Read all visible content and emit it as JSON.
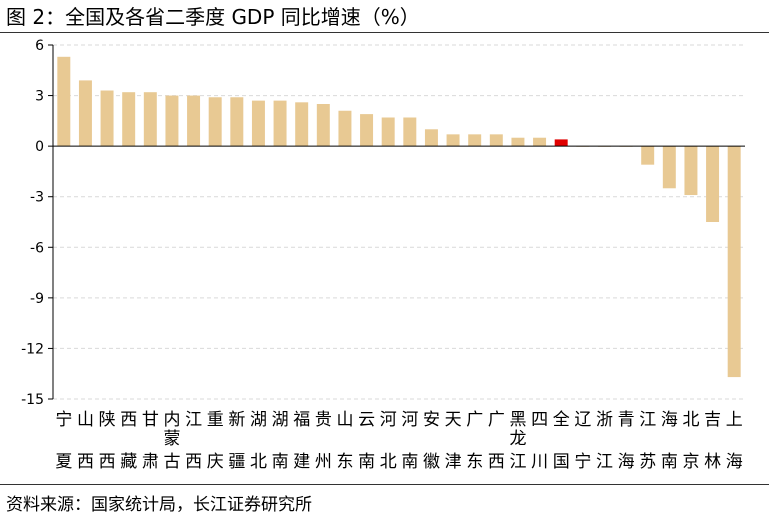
{
  "title": "图 2：全国及各省二季度 GDP 同比增速（%）",
  "source": "资料来源：国家统计局，长江证券研究所",
  "colors": {
    "bar": "#e8c993",
    "highlight": "#e00000",
    "grid": "#d9d9d9",
    "axis": "#000000"
  },
  "chart_data": {
    "type": "bar",
    "title": "全国及各省二季度 GDP 同比增速（%）",
    "xlabel": "",
    "ylabel": "",
    "ylim": [
      -15,
      6
    ],
    "yticks": [
      6,
      3,
      0,
      -3,
      -6,
      -9,
      -12,
      -15
    ],
    "grid": true,
    "highlight_category": "全国",
    "categories": [
      "宁夏",
      "山西",
      "陕西",
      "西藏",
      "甘肃",
      "内蒙古",
      "江西",
      "重庆",
      "新疆",
      "湖北",
      "湖南",
      "福建",
      "贵州",
      "山东",
      "云南",
      "河北",
      "河南",
      "安徽",
      "天津",
      "广东",
      "广西",
      "黑龙江",
      "四川",
      "全国",
      "辽宁",
      "浙江",
      "青海",
      "江苏",
      "海南",
      "北京",
      "吉林",
      "上海"
    ],
    "values": [
      5.3,
      3.9,
      3.3,
      3.2,
      3.2,
      3.0,
      3.0,
      2.9,
      2.9,
      2.7,
      2.7,
      2.6,
      2.5,
      2.1,
      1.9,
      1.7,
      1.7,
      1.0,
      0.7,
      0.7,
      0.7,
      0.5,
      0.5,
      0.4,
      0.0,
      0.0,
      0.0,
      -1.1,
      -2.5,
      -2.9,
      -4.5,
      -13.7
    ]
  }
}
